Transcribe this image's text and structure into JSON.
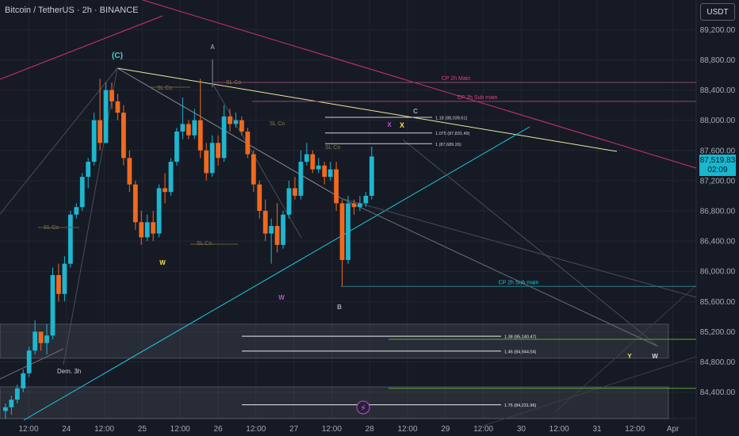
{
  "header": {
    "title": "Bitcoin / TetherUS · 2h · BINANCE",
    "currency": "USDT"
  },
  "last_price": {
    "value": "87,519.83",
    "countdown": "02:09"
  },
  "colors": {
    "bg": "#161a25",
    "grid": "#222633",
    "up": "#1fb6cf",
    "down": "#f06a1e",
    "label": "#8a8e99"
  },
  "chart_data": {
    "type": "candlestick",
    "title": "Bitcoin / TetherUS · 2h · BINANCE",
    "ylim": [
      84050,
      89550
    ],
    "y_ticks": [
      84400,
      84800,
      85200,
      85600,
      86000,
      86400,
      86800,
      87200,
      87600,
      88000,
      88400,
      88800,
      89200
    ],
    "y_tick_labels": [
      "84,400.00",
      "84,800.00",
      "85,200.00",
      "85,600.00",
      "86,000.00",
      "86,400.00",
      "86,800.00",
      "87,200.00",
      "87,600.00",
      "88,000.00",
      "88,400.00",
      "88,800.00",
      "89,200.00"
    ],
    "x_ticks": [
      "12:00",
      "24",
      "12:00",
      "25",
      "12:00",
      "26",
      "12:00",
      "27",
      "12:00",
      "28",
      "12:00",
      "29",
      "12:00",
      "30",
      "12:00",
      "31",
      "12:00",
      "Apr"
    ],
    "candles": [
      {
        "o": 84150,
        "h": 84250,
        "l": 84050,
        "c": 84200
      },
      {
        "o": 84200,
        "h": 84350,
        "l": 84100,
        "c": 84300
      },
      {
        "o": 84300,
        "h": 84500,
        "l": 84250,
        "c": 84450
      },
      {
        "o": 84450,
        "h": 84700,
        "l": 84400,
        "c": 84650
      },
      {
        "o": 84650,
        "h": 85000,
        "l": 84600,
        "c": 84950
      },
      {
        "o": 84950,
        "h": 85350,
        "l": 84900,
        "c": 85200
      },
      {
        "o": 85200,
        "h": 85200,
        "l": 84950,
        "c": 85050
      },
      {
        "o": 85050,
        "h": 85300,
        "l": 84900,
        "c": 85150
      },
      {
        "o": 85150,
        "h": 86050,
        "l": 85100,
        "c": 85950
      },
      {
        "o": 85950,
        "h": 86100,
        "l": 85600,
        "c": 85700
      },
      {
        "o": 85700,
        "h": 86200,
        "l": 85600,
        "c": 86100
      },
      {
        "o": 86100,
        "h": 86800,
        "l": 86050,
        "c": 86750
      },
      {
        "o": 86750,
        "h": 86900,
        "l": 86700,
        "c": 86850
      },
      {
        "o": 86850,
        "h": 87300,
        "l": 86800,
        "c": 87250
      },
      {
        "o": 87250,
        "h": 87500,
        "l": 87100,
        "c": 87450
      },
      {
        "o": 87450,
        "h": 88100,
        "l": 87400,
        "c": 88000
      },
      {
        "o": 88000,
        "h": 88550,
        "l": 87600,
        "c": 87700
      },
      {
        "o": 87700,
        "h": 88500,
        "l": 87700,
        "c": 88400
      },
      {
        "o": 88400,
        "h": 88500,
        "l": 88150,
        "c": 88250
      },
      {
        "o": 88250,
        "h": 88350,
        "l": 88000,
        "c": 88100
      },
      {
        "o": 88100,
        "h": 88200,
        "l": 87400,
        "c": 87500
      },
      {
        "o": 87500,
        "h": 87600,
        "l": 87050,
        "c": 87150
      },
      {
        "o": 87150,
        "h": 87200,
        "l": 86550,
        "c": 86650
      },
      {
        "o": 86650,
        "h": 86800,
        "l": 86350,
        "c": 86450
      },
      {
        "o": 86450,
        "h": 86750,
        "l": 86400,
        "c": 86650
      },
      {
        "o": 86650,
        "h": 86800,
        "l": 86400,
        "c": 86500
      },
      {
        "o": 86500,
        "h": 87150,
        "l": 86450,
        "c": 87100
      },
      {
        "o": 87100,
        "h": 87300,
        "l": 86900,
        "c": 87050
      },
      {
        "o": 87050,
        "h": 87500,
        "l": 87000,
        "c": 87450
      },
      {
        "o": 87450,
        "h": 87900,
        "l": 87400,
        "c": 87850
      },
      {
        "o": 87850,
        "h": 88300,
        "l": 87750,
        "c": 87950
      },
      {
        "o": 87950,
        "h": 88000,
        "l": 87750,
        "c": 87800
      },
      {
        "o": 87800,
        "h": 88150,
        "l": 87750,
        "c": 88000
      },
      {
        "o": 88000,
        "h": 88550,
        "l": 87500,
        "c": 87600
      },
      {
        "o": 87600,
        "h": 87700,
        "l": 87200,
        "c": 87300
      },
      {
        "o": 87300,
        "h": 87800,
        "l": 87250,
        "c": 87700
      },
      {
        "o": 87700,
        "h": 87800,
        "l": 87400,
        "c": 87500
      },
      {
        "o": 87500,
        "h": 88200,
        "l": 87450,
        "c": 88050
      },
      {
        "o": 88050,
        "h": 88150,
        "l": 87850,
        "c": 87950
      },
      {
        "o": 87950,
        "h": 88100,
        "l": 87900,
        "c": 88000
      },
      {
        "o": 88000,
        "h": 88050,
        "l": 87800,
        "c": 87850
      },
      {
        "o": 87850,
        "h": 87900,
        "l": 87500,
        "c": 87550
      },
      {
        "o": 87550,
        "h": 87600,
        "l": 87050,
        "c": 87150
      },
      {
        "o": 87150,
        "h": 87200,
        "l": 86700,
        "c": 86800
      },
      {
        "o": 86800,
        "h": 86950,
        "l": 86400,
        "c": 86500
      },
      {
        "o": 86500,
        "h": 86700,
        "l": 86100,
        "c": 86600
      },
      {
        "o": 86600,
        "h": 86900,
        "l": 86250,
        "c": 86350
      },
      {
        "o": 86350,
        "h": 86800,
        "l": 86300,
        "c": 86750
      },
      {
        "o": 86750,
        "h": 87200,
        "l": 86700,
        "c": 87100
      },
      {
        "o": 87100,
        "h": 87250,
        "l": 86950,
        "c": 87000
      },
      {
        "o": 87000,
        "h": 87600,
        "l": 86950,
        "c": 87450
      },
      {
        "o": 87450,
        "h": 87700,
        "l": 87400,
        "c": 87550
      },
      {
        "o": 87550,
        "h": 87600,
        "l": 87300,
        "c": 87350
      },
      {
        "o": 87350,
        "h": 87500,
        "l": 87300,
        "c": 87400
      },
      {
        "o": 87400,
        "h": 87450,
        "l": 87150,
        "c": 87250
      },
      {
        "o": 87250,
        "h": 87450,
        "l": 87200,
        "c": 87350
      },
      {
        "o": 87350,
        "h": 87450,
        "l": 86800,
        "c": 86900
      },
      {
        "o": 86900,
        "h": 86950,
        "l": 85800,
        "c": 86150
      },
      {
        "o": 86150,
        "h": 87000,
        "l": 86100,
        "c": 86900
      },
      {
        "o": 86900,
        "h": 86950,
        "l": 86750,
        "c": 86850
      },
      {
        "o": 86850,
        "h": 87000,
        "l": 86800,
        "c": 86900
      },
      {
        "o": 86900,
        "h": 87050,
        "l": 86850,
        "c": 87000
      },
      {
        "o": 87000,
        "h": 87650,
        "l": 86950,
        "c": 87520
      }
    ],
    "annotations": {
      "wave_labels": [
        "(C)",
        "A",
        "W",
        "C",
        "W",
        "B",
        "X",
        "X",
        "Y",
        "W"
      ],
      "level_labels": [
        {
          "text": "CP 2h Main",
          "price": 88500
        },
        {
          "text": "CP 2h Sub main",
          "price": 88250
        },
        {
          "text": "CP 2h Sub main",
          "price": 85800
        }
      ],
      "fib_labels": [
        {
          "text": "1.18 (88,038.61)",
          "price": 88038.61
        },
        {
          "text": "1.075 (87,831.49)",
          "price": 87831.49
        },
        {
          "text": "1 (87,689.26)",
          "price": 87689.26
        },
        {
          "text": "1.38 (85,140.47)",
          "price": 85140.47
        },
        {
          "text": "1.46 (84,944.04)",
          "price": 84944.04
        },
        {
          "text": "1.75 (84,231.96)",
          "price": 84231.96
        }
      ],
      "sl_labels": [
        "SL Co",
        "SL Co",
        "SL Co",
        "SL Co",
        "SL Co",
        "SL Co"
      ],
      "zone_label": "Dem. 3h",
      "zones": [
        [
          84850,
          85300
        ],
        [
          84050,
          84470
        ]
      ]
    }
  }
}
